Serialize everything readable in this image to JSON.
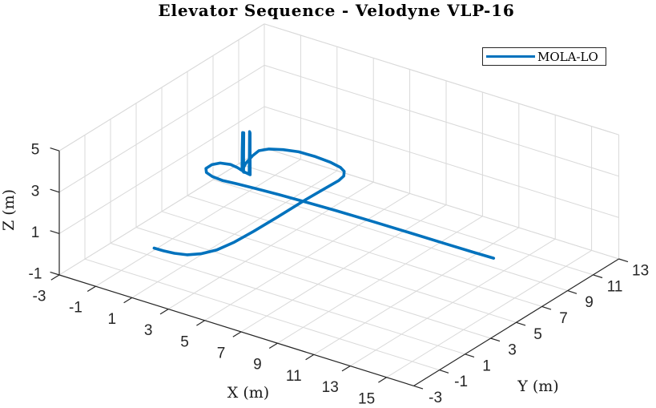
{
  "figure": {
    "background": "#ffffff"
  },
  "chart_data": {
    "type": "line",
    "projection": "3d",
    "title": "Elevator Sequence - Velodyne VLP-16",
    "xlabel": "X (m)",
    "ylabel": "Y (m)",
    "zlabel": "Z (m)",
    "xlim": [
      -3,
      16.5
    ],
    "ylim": [
      -3,
      13
    ],
    "zlim": [
      -1,
      5
    ],
    "xticks": [
      -3,
      -1,
      1,
      3,
      5,
      7,
      9,
      11,
      13,
      15
    ],
    "yticks": [
      -3,
      -1,
      1,
      3,
      5,
      7,
      9,
      11,
      13
    ],
    "zticks": [
      -1,
      1,
      3,
      5
    ],
    "grid": true,
    "colors": {
      "line": "#0072BD",
      "axis": "#262626",
      "grid": "#d9d9d9",
      "text": "#262626"
    },
    "legend": {
      "position": "northeast",
      "entries": [
        {
          "label": "MOLA-LO",
          "color": "#0072BD"
        }
      ]
    },
    "series": [
      {
        "name": "MOLA-LO",
        "color": "#0072BD",
        "points": [
          [
            0.1,
            0.0,
            0
          ],
          [
            0.6,
            0.02,
            0
          ],
          [
            1.15,
            0.1,
            0
          ],
          [
            1.7,
            0.3,
            0
          ],
          [
            2.15,
            0.75,
            0
          ],
          [
            2.5,
            1.5,
            0
          ],
          [
            2.68,
            2.6,
            0
          ],
          [
            2.75,
            4.0,
            0
          ],
          [
            2.78,
            5.9,
            0
          ],
          [
            2.78,
            7.93,
            0
          ],
          [
            2.82,
            9.4,
            0
          ],
          [
            2.86,
            10.5,
            0
          ],
          [
            2.78,
            11.0,
            0
          ],
          [
            2.52,
            11.4,
            0
          ],
          [
            2.15,
            11.63,
            0
          ],
          [
            1.5,
            11.8,
            0
          ],
          [
            0.6,
            11.88,
            0
          ],
          [
            -0.3,
            11.85,
            0
          ],
          [
            -1.0,
            11.62,
            0
          ],
          [
            -1.55,
            11.3,
            0
          ],
          [
            -1.82,
            10.9,
            0
          ],
          [
            -1.75,
            10.3,
            0
          ],
          [
            -1.55,
            9.5,
            0
          ],
          [
            -1.35,
            9.0,
            0
          ],
          [
            -1.28,
            8.82,
            0
          ],
          [
            -1.27,
            8.82,
            0.9
          ],
          [
            -1.26,
            8.84,
            1.82
          ],
          [
            -1.17,
            8.8,
            1.85
          ],
          [
            -1.16,
            8.77,
            0.9
          ],
          [
            -1.14,
            8.74,
            -0.02
          ],
          [
            -1.0,
            8.72,
            0.0
          ],
          [
            -0.8,
            8.7,
            0.0
          ],
          [
            -0.79,
            8.7,
            1.0
          ],
          [
            -0.78,
            8.7,
            2.05
          ],
          [
            -0.74,
            8.68,
            2.0
          ],
          [
            -0.73,
            8.67,
            1.0
          ],
          [
            -0.72,
            8.66,
            0.0
          ],
          [
            -1.1,
            8.74,
            0
          ],
          [
            -1.6,
            8.92,
            0
          ],
          [
            -2.04,
            9.0,
            0
          ],
          [
            -2.5,
            8.85,
            0
          ],
          [
            -2.71,
            8.5,
            0
          ],
          [
            -2.71,
            8.03,
            0
          ],
          [
            -2.45,
            7.7,
            0
          ],
          [
            -2.0,
            7.52,
            0
          ],
          [
            -1.4,
            7.45,
            0
          ],
          [
            -0.7,
            7.55,
            0
          ],
          [
            0.3,
            7.65,
            0
          ],
          [
            1.5,
            7.75,
            0
          ],
          [
            2.78,
            7.82,
            0
          ],
          [
            4.5,
            7.9,
            0
          ],
          [
            6.5,
            7.95,
            0
          ],
          [
            8.5,
            7.98,
            0
          ],
          [
            10.5,
            8.0,
            0
          ],
          [
            12.0,
            8.02,
            0
          ],
          [
            13.1,
            8.05,
            0
          ]
        ]
      }
    ]
  }
}
